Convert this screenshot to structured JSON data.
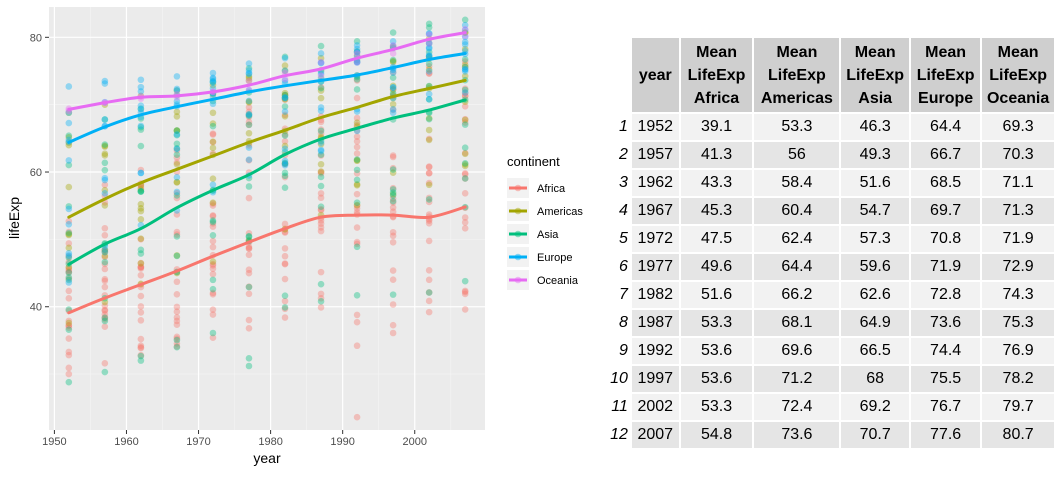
{
  "chart_data": [
    {
      "type": "scatter",
      "title": "",
      "xlabel": "year",
      "ylabel": "lifeExp",
      "xlim": [
        1949.25,
        2009.75
      ],
      "ylim": [
        21.7,
        84.5
      ],
      "x_ticks": [
        1950,
        1960,
        1970,
        1980,
        1990,
        2000
      ],
      "y_ticks": [
        40,
        60,
        80
      ],
      "grid": true,
      "legend": {
        "title": "continent",
        "position": "right"
      },
      "x": [
        1952,
        1957,
        1962,
        1967,
        1972,
        1977,
        1982,
        1987,
        1992,
        1997,
        2002,
        2007
      ],
      "series": [
        {
          "name": "Africa",
          "color": "#F8766D",
          "points_min": [
            30.0,
            31.6,
            32.8,
            34.1,
            35.4,
            36.8,
            38.4,
            39.9,
            23.6,
            36.1,
            39.2,
            39.6
          ],
          "points_max": [
            52.7,
            58.1,
            60.3,
            63.2,
            65.7,
            69.6,
            71.4,
            72.6,
            73.6,
            74.8,
            75.7,
            76.4
          ],
          "smooth": [
            39.1,
            41.3,
            43.3,
            45.3,
            47.5,
            49.6,
            51.6,
            53.3,
            53.6,
            53.6,
            53.3,
            54.8
          ]
        },
        {
          "name": "Americas",
          "color": "#A3A500",
          "points_min": [
            37.6,
            40.7,
            43.4,
            45.0,
            46.7,
            49.9,
            51.5,
            53.6,
            55.1,
            56.7,
            58.1,
            60.9
          ],
          "points_max": [
            68.8,
            70.0,
            71.3,
            72.1,
            72.9,
            74.2,
            75.8,
            76.9,
            77.9,
            78.6,
            79.8,
            80.7
          ],
          "smooth": [
            53.3,
            56.0,
            58.4,
            60.4,
            62.4,
            64.4,
            66.2,
            68.1,
            69.6,
            71.2,
            72.4,
            73.6
          ]
        },
        {
          "name": "Asia",
          "color": "#00BF7D",
          "points_min": [
            28.8,
            30.3,
            32.0,
            34.0,
            36.1,
            31.2,
            39.9,
            40.8,
            41.7,
            41.8,
            42.1,
            43.8
          ],
          "points_max": [
            65.4,
            67.8,
            69.4,
            71.4,
            73.4,
            75.4,
            77.1,
            78.7,
            79.4,
            80.7,
            82.0,
            82.6
          ],
          "smooth": [
            46.3,
            49.3,
            51.6,
            54.7,
            57.3,
            59.6,
            62.6,
            64.9,
            66.5,
            68.0,
            69.2,
            70.7
          ]
        },
        {
          "name": "Europe",
          "color": "#00B0F6",
          "points_min": [
            43.6,
            48.1,
            52.1,
            54.3,
            57.0,
            59.5,
            61.0,
            63.1,
            66.1,
            68.8,
            70.8,
            71.8
          ],
          "points_max": [
            72.7,
            73.5,
            73.7,
            74.2,
            74.7,
            76.1,
            76.9,
            77.6,
            78.8,
            79.4,
            80.6,
            81.8
          ],
          "smooth": [
            64.4,
            66.7,
            68.5,
            69.7,
            70.8,
            71.9,
            72.8,
            73.6,
            74.4,
            75.5,
            76.7,
            77.6
          ]
        },
        {
          "name": "Oceania",
          "color": "#E76BF3",
          "points_min": [
            69.1,
            70.3,
            70.9,
            71.1,
            71.9,
            72.2,
            73.8,
            74.3,
            76.3,
            77.6,
            79.1,
            80.2
          ],
          "points_max": [
            69.4,
            70.3,
            71.2,
            71.5,
            71.9,
            73.5,
            74.7,
            76.3,
            77.6,
            78.8,
            80.4,
            81.2
          ],
          "smooth": [
            69.3,
            70.3,
            71.1,
            71.3,
            71.9,
            72.9,
            74.3,
            75.3,
            76.9,
            78.2,
            79.7,
            80.7
          ]
        }
      ]
    },
    {
      "type": "table",
      "columns": [
        "year",
        "Mean LifeExp Africa",
        "Mean LifeExp Americas",
        "Mean LifeExp Asia",
        "Mean LifeExp Europe",
        "Mean LifeExp Oceania"
      ],
      "header": [
        [
          "year"
        ],
        [
          "Mean",
          "LifeExp",
          "Africa"
        ],
        [
          "Mean",
          "LifeExp",
          "Americas"
        ],
        [
          "Mean",
          "LifeExp",
          "Asia"
        ],
        [
          "Mean",
          "LifeExp",
          "Europe"
        ],
        [
          "Mean",
          "LifeExp",
          "Oceania"
        ]
      ],
      "rows": [
        {
          "id": "1",
          "year": "1952",
          "africa": "39.1",
          "americas": "53.3",
          "asia": "46.3",
          "europe": "64.4",
          "oceania": "69.3"
        },
        {
          "id": "2",
          "year": "1957",
          "africa": "41.3",
          "americas": "56",
          "asia": "49.3",
          "europe": "66.7",
          "oceania": "70.3"
        },
        {
          "id": "3",
          "year": "1962",
          "africa": "43.3",
          "americas": "58.4",
          "asia": "51.6",
          "europe": "68.5",
          "oceania": "71.1"
        },
        {
          "id": "4",
          "year": "1967",
          "africa": "45.3",
          "americas": "60.4",
          "asia": "54.7",
          "europe": "69.7",
          "oceania": "71.3"
        },
        {
          "id": "5",
          "year": "1972",
          "africa": "47.5",
          "americas": "62.4",
          "asia": "57.3",
          "europe": "70.8",
          "oceania": "71.9"
        },
        {
          "id": "6",
          "year": "1977",
          "africa": "49.6",
          "americas": "64.4",
          "asia": "59.6",
          "europe": "71.9",
          "oceania": "72.9"
        },
        {
          "id": "7",
          "year": "1982",
          "africa": "51.6",
          "americas": "66.2",
          "asia": "62.6",
          "europe": "72.8",
          "oceania": "74.3"
        },
        {
          "id": "8",
          "year": "1987",
          "africa": "53.3",
          "americas": "68.1",
          "asia": "64.9",
          "europe": "73.6",
          "oceania": "75.3"
        },
        {
          "id": "9",
          "year": "1992",
          "africa": "53.6",
          "americas": "69.6",
          "asia": "66.5",
          "europe": "74.4",
          "oceania": "76.9"
        },
        {
          "id": "10",
          "year": "1997",
          "africa": "53.6",
          "americas": "71.2",
          "asia": "68",
          "europe": "75.5",
          "oceania": "78.2"
        },
        {
          "id": "11",
          "year": "2002",
          "africa": "53.3",
          "americas": "72.4",
          "asia": "69.2",
          "europe": "76.7",
          "oceania": "79.7"
        },
        {
          "id": "12",
          "year": "2007",
          "africa": "54.8",
          "americas": "73.6",
          "asia": "70.7",
          "europe": "77.6",
          "oceania": "80.7"
        }
      ]
    }
  ]
}
